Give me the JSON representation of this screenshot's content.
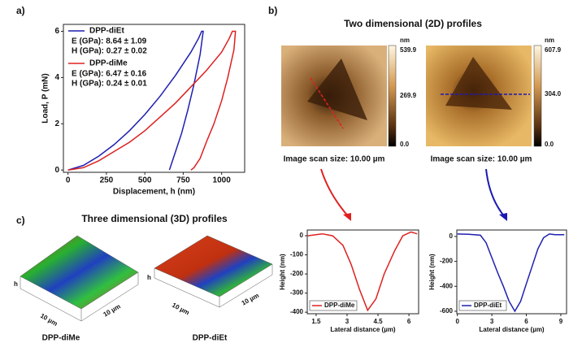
{
  "panels": {
    "a": "a)",
    "b": "b)",
    "c": "c)"
  },
  "titles": {
    "two_d": "Two dimensional (2D) profiles",
    "three_d": "Three dimensional (3D) profiles"
  },
  "images": [
    {
      "unit": "nm",
      "max": "539.9",
      "mid": "269.9",
      "min": "0.0",
      "caption": "Image scan size: 10.00 µm"
    },
    {
      "unit": "nm",
      "max": "607.9",
      "mid": "304.0",
      "min": "0.0",
      "caption": "Image scan size: 10.00 µm"
    }
  ],
  "surfaces": [
    {
      "height": "h",
      "side_a": "10 µm",
      "side_b": "10 µm",
      "name": "DPP-diMe"
    },
    {
      "height": "h",
      "side_a": "10 µm",
      "side_b": "10 µm",
      "name": "DPP-diEt"
    }
  ],
  "chart_data": [
    {
      "type": "line",
      "xlabel": "Displacement, h (nm)",
      "ylabel": "Load, P (mN)",
      "xlim": [
        -30,
        1150
      ],
      "xticks": [
        0,
        250,
        500,
        750,
        1000
      ],
      "ylim": [
        -0.1,
        6.3
      ],
      "yticks": [
        0,
        2,
        4,
        6
      ],
      "legend": "upper left",
      "series": [
        {
          "name": "DPP-diEt",
          "color": "#1f1fb0",
          "x": [
            0,
            100,
            200,
            300,
            400,
            500,
            600,
            700,
            800,
            850,
            870,
            880,
            860,
            820,
            780,
            740,
            700,
            670,
            660
          ],
          "values": [
            0,
            0.2,
            0.6,
            1.1,
            1.7,
            2.4,
            3.2,
            4.1,
            5.1,
            5.7,
            6,
            6,
            5.0,
            3.7,
            2.6,
            1.6,
            0.8,
            0.2,
            0
          ]
        },
        {
          "name": "DPP-diMe",
          "color": "#dd2020",
          "x": [
            0,
            100,
            200,
            300,
            400,
            500,
            600,
            700,
            800,
            900,
            1000,
            1050,
            1070,
            1090,
            1080,
            1040,
            1000,
            950,
            900,
            860,
            820,
            800
          ],
          "values": [
            0,
            0.1,
            0.4,
            0.8,
            1.2,
            1.7,
            2.3,
            2.9,
            3.6,
            4.3,
            5.1,
            5.7,
            6,
            6,
            5.2,
            4.0,
            3.0,
            2.0,
            1.2,
            0.5,
            0.1,
            0
          ]
        }
      ],
      "annotations": [
        [
          "E (GPa): 8.64 ± 1.09",
          "H (GPa): 0.27 ± 0.02"
        ],
        [
          "E (GPa): 6.47 ± 0.16",
          "H (GPa): 0.24 ± 0.01"
        ]
      ]
    },
    {
      "type": "line",
      "xlabel": "Lateral distance (µm)",
      "ylabel": "Height (nm)",
      "xlim": [
        1.07,
        6.47
      ],
      "xticks": [
        1.5,
        3.0,
        4.5,
        6.0
      ],
      "ylim": [
        -408,
        30
      ],
      "yticks": [
        0,
        -100,
        -200,
        -300,
        -400
      ],
      "legend": "lower left",
      "series": [
        {
          "name": "DPP-diMe",
          "color": "#dd2020",
          "x": [
            1.1,
            1.8,
            2.3,
            2.8,
            3.2,
            3.6,
            4.0,
            4.4,
            4.8,
            5.3,
            5.7,
            6.1,
            6.4
          ],
          "values": [
            0,
            10,
            0,
            -50,
            -150,
            -280,
            -390,
            -330,
            -200,
            -80,
            0,
            20,
            10
          ]
        }
      ]
    },
    {
      "type": "line",
      "xlabel": "Lateral distance (µm)",
      "ylabel": "Height (nm)",
      "xlim": [
        -0.05,
        9.5
      ],
      "xticks": [
        0,
        3,
        6,
        9
      ],
      "ylim": [
        -620,
        52
      ],
      "yticks": [
        0,
        -200,
        -400,
        -600
      ],
      "legend": "lower left",
      "series": [
        {
          "name": "DPP-diEt",
          "color": "#1f1fb0",
          "x": [
            0,
            1,
            2,
            2.5,
            3,
            3.5,
            4,
            4.5,
            5,
            5.5,
            6,
            6.5,
            7,
            7.5,
            8,
            8.5,
            9.3
          ],
          "values": [
            20,
            18,
            10,
            -50,
            -170,
            -290,
            -400,
            -520,
            -600,
            -520,
            -380,
            -240,
            -100,
            -10,
            20,
            15,
            15
          ]
        }
      ]
    }
  ]
}
